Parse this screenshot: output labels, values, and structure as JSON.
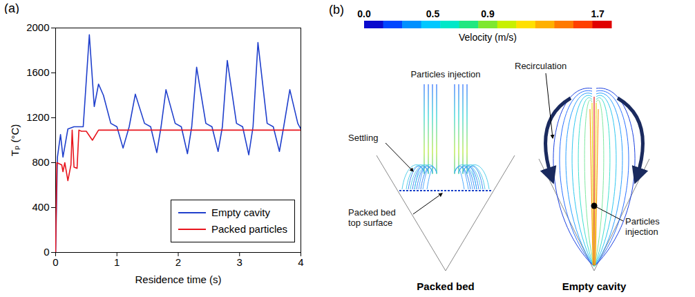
{
  "chart_data": {
    "type": "line",
    "panel_label": "(a)",
    "x_label": "Residence time (s)",
    "y_label": "Tₚ (°C)",
    "xlim": [
      0,
      4
    ],
    "xticks": [
      0,
      1,
      2,
      3,
      4
    ],
    "ylim": [
      0,
      2000
    ],
    "yticks": [
      0,
      400,
      800,
      1200,
      1600,
      2000
    ],
    "legend": "bottom-right",
    "series": [
      {
        "name": "Empty cavity",
        "color": "#1f3fcc",
        "x": [
          0,
          0.03,
          0.08,
          0.12,
          0.2,
          0.3,
          0.45,
          0.55,
          0.63,
          0.7,
          0.78,
          0.9,
          1.0,
          1.1,
          1.2,
          1.3,
          1.45,
          1.55,
          1.65,
          1.72,
          1.8,
          1.95,
          2.05,
          2.15,
          2.22,
          2.3,
          2.45,
          2.55,
          2.65,
          2.72,
          2.8,
          2.95,
          3.05,
          3.15,
          3.22,
          3.3,
          3.45,
          3.55,
          3.65,
          3.72,
          3.82,
          3.95,
          4.0
        ],
        "values": [
          0,
          850,
          1050,
          850,
          1100,
          1120,
          1120,
          1940,
          1300,
          1500,
          1400,
          1150,
          1120,
          930,
          1120,
          1410,
          1150,
          1120,
          890,
          1120,
          1450,
          1150,
          1120,
          880,
          1120,
          1650,
          1150,
          1120,
          900,
          1120,
          1710,
          1150,
          1120,
          870,
          1120,
          1870,
          1150,
          1120,
          900,
          1120,
          1450,
          1150,
          1100
        ]
      },
      {
        "name": "Packed particles",
        "color": "#e8141c",
        "x": [
          0,
          0.02,
          0.1,
          0.12,
          0.15,
          0.2,
          0.25,
          0.27,
          0.3,
          0.35,
          0.38,
          0.42,
          0.5,
          0.6,
          0.7,
          4.0
        ],
        "values": [
          0,
          800,
          780,
          720,
          800,
          640,
          780,
          1090,
          760,
          750,
          1090,
          1080,
          1080,
          1000,
          1090,
          1090
        ]
      }
    ]
  },
  "diagram": {
    "panel_label": "(b)",
    "colorbar": {
      "title": "Velocity (m/s)",
      "range": [
        0,
        1.8
      ],
      "ticks": [
        {
          "value": 0,
          "label": "0.0"
        },
        0.5,
        0.9,
        1.7
      ]
    },
    "panels": [
      {
        "title": "Packed bed",
        "labels": [
          "Particles injection",
          "Settling",
          "Packed bed top surface"
        ]
      },
      {
        "title": "Empty cavity",
        "labels": [
          "Recirculation",
          "Particles injection"
        ]
      }
    ]
  }
}
